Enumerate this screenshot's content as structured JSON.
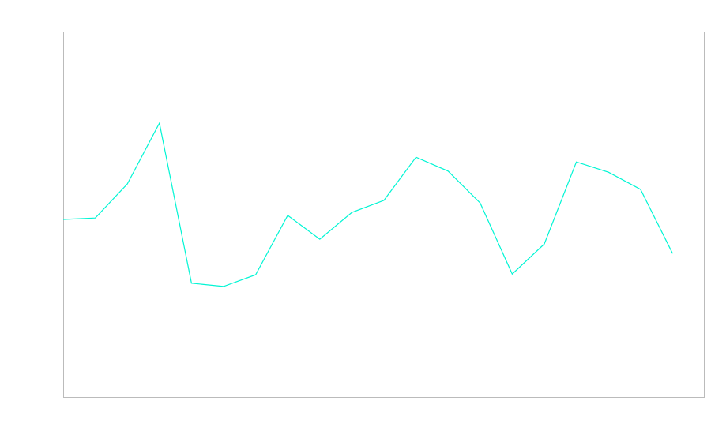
{
  "chart_data": {
    "type": "line",
    "title": "",
    "xlabel": "",
    "ylabel": "",
    "x": [
      0,
      1,
      2,
      3,
      4,
      5,
      6,
      7,
      8,
      9,
      10,
      11,
      12,
      13,
      14,
      15,
      16,
      17,
      18,
      19
    ],
    "series": [
      {
        "values": [
          48.7,
          49.1,
          58.4,
          75.0,
          31.3,
          30.4,
          33.6,
          49.8,
          43.3,
          50.6,
          53.9,
          65.7,
          61.9,
          53.2,
          33.8,
          42.0,
          64.4,
          61.6,
          56.9,
          39.4
        ],
        "color": "#00f5d4"
      }
    ],
    "xlim": [
      0,
      20
    ],
    "ylim": [
      0,
      100
    ],
    "grid": false,
    "axes_ticks_visible": false,
    "frame_color": "#bbbbbb"
  }
}
